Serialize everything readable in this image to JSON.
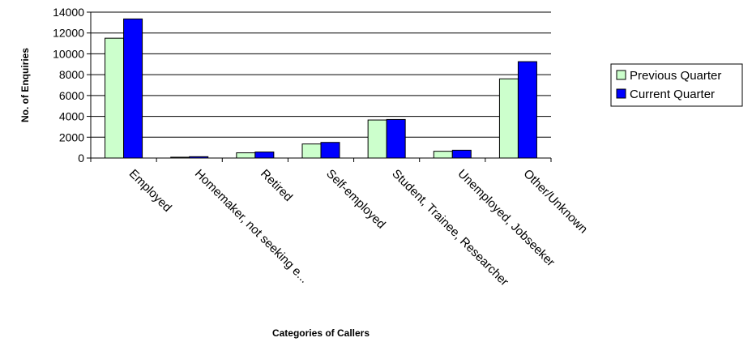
{
  "chart_data": {
    "type": "bar",
    "title": "",
    "xlabel": "Categories of Callers",
    "ylabel": "No. of Enquiries",
    "ylim": [
      0,
      14000
    ],
    "yticks": [
      0,
      2000,
      4000,
      6000,
      8000,
      10000,
      12000,
      14000
    ],
    "grid": true,
    "legend_position": "right",
    "categories": [
      "Employed",
      "Homemaker, not seeking e...",
      "Retired",
      "Self-employed",
      "Student, Trainee, Researcher",
      "Unemployed, Jobseeker",
      "Other/Unknown"
    ],
    "series": [
      {
        "name": "Previous Quarter",
        "color": "#ccffcc",
        "values": [
          11500,
          80,
          500,
          1350,
          3650,
          650,
          7600
        ]
      },
      {
        "name": "Current Quarter",
        "color": "#0000ff",
        "values": [
          13350,
          130,
          580,
          1500,
          3700,
          750,
          9250
        ]
      }
    ]
  }
}
